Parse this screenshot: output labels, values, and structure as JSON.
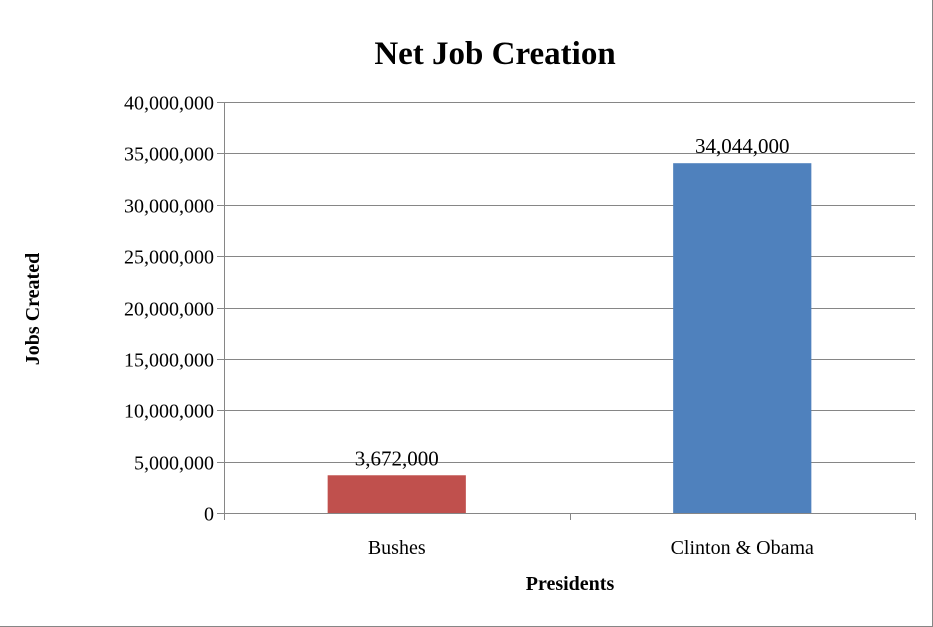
{
  "chart_data": {
    "type": "bar",
    "title": "Net Job Creation",
    "xlabel": "Presidents",
    "ylabel": "Jobs Created",
    "categories": [
      "Bushes",
      "Clinton & Obama"
    ],
    "values": [
      3672000,
      34044000
    ],
    "data_labels": [
      "3,672,000",
      "34,044,000"
    ],
    "bar_colors": [
      "#c0504d",
      "#4f81bd"
    ],
    "ylim": [
      0,
      40000000
    ],
    "yticks": [
      0,
      5000000,
      10000000,
      15000000,
      20000000,
      25000000,
      30000000,
      35000000,
      40000000
    ],
    "ytick_labels": [
      "0",
      "5,000,000",
      "10,000,000",
      "15,000,000",
      "20,000,000",
      "25,000,000",
      "30,000,000",
      "35,000,000",
      "40,000,000"
    ],
    "grid": true,
    "legend": "none"
  }
}
